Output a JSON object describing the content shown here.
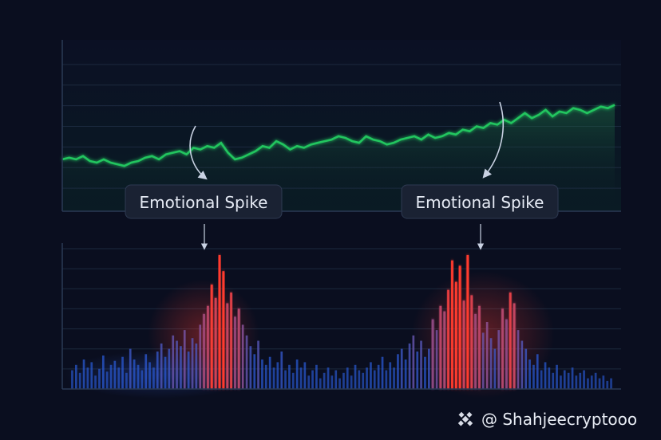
{
  "chart_data": [
    {
      "type": "line",
      "x": [
        0,
        1,
        2,
        3,
        4,
        5,
        6,
        7,
        8,
        9,
        10,
        11,
        12,
        13,
        14,
        15,
        16,
        17,
        18,
        19,
        20,
        21,
        22,
        23,
        24,
        25,
        26,
        27,
        28,
        29,
        30,
        31,
        32,
        33,
        34,
        35,
        36,
        37,
        38,
        39,
        40,
        41,
        42,
        43,
        44,
        45,
        46,
        47,
        48,
        49,
        50,
        51,
        52,
        53,
        54,
        55,
        56,
        57,
        58,
        59,
        60,
        61,
        62,
        63,
        64,
        65,
        66,
        67,
        68,
        69,
        70,
        71,
        72,
        73,
        74,
        75,
        76,
        77,
        78,
        79,
        80
      ],
      "values": [
        30,
        31,
        30,
        32,
        29,
        28,
        30,
        28,
        27,
        26,
        28,
        29,
        31,
        32,
        30,
        33,
        34,
        35,
        33,
        37,
        36,
        38,
        37,
        40,
        34,
        30,
        31,
        33,
        35,
        38,
        37,
        41,
        39,
        36,
        38,
        37,
        39,
        40,
        41,
        42,
        44,
        43,
        41,
        40,
        44,
        42,
        41,
        39,
        40,
        42,
        43,
        44,
        42,
        45,
        43,
        44,
        46,
        45,
        48,
        47,
        50,
        49,
        52,
        51,
        54,
        52,
        55,
        58,
        55,
        57,
        60,
        56,
        59,
        58,
        61,
        60,
        58,
        60,
        62,
        61,
        63
      ],
      "ylim": [
        0,
        100
      ],
      "color": "#22c55e"
    },
    {
      "type": "bar",
      "x": [
        0,
        1,
        2,
        3,
        4,
        5,
        6,
        7,
        8,
        9,
        10,
        11,
        12,
        13,
        14,
        15,
        16,
        17,
        18,
        19,
        20,
        21,
        22,
        23,
        24,
        25,
        26,
        27,
        28,
        29,
        30,
        31,
        32,
        33,
        34,
        35,
        36,
        37,
        38,
        39,
        40,
        41,
        42,
        43,
        44,
        45,
        46,
        47,
        48,
        49,
        50,
        51,
        52,
        53,
        54,
        55,
        56,
        57,
        58,
        59,
        60,
        61,
        62,
        63,
        64,
        65,
        66,
        67,
        68,
        69,
        70,
        71,
        72,
        73,
        74,
        75,
        76,
        77,
        78,
        79,
        80,
        81,
        82,
        83,
        84,
        85,
        86,
        87,
        88,
        89,
        90,
        91,
        92,
        93,
        94,
        95,
        96,
        97,
        98,
        99,
        100,
        101,
        102,
        103,
        104,
        105,
        106,
        107,
        108,
        109,
        110,
        111,
        112,
        113,
        114,
        115,
        116,
        117,
        118,
        119,
        120,
        121,
        122,
        123,
        124,
        125,
        126,
        127,
        128,
        129,
        130,
        131,
        132,
        133,
        134,
        135,
        136,
        137,
        138,
        139
      ],
      "values": [
        14,
        18,
        12,
        22,
        16,
        20,
        10,
        15,
        25,
        13,
        18,
        21,
        16,
        24,
        12,
        30,
        22,
        18,
        14,
        26,
        20,
        16,
        28,
        34,
        24,
        30,
        40,
        36,
        32,
        44,
        28,
        38,
        34,
        48,
        56,
        62,
        78,
        68,
        100,
        88,
        64,
        72,
        54,
        60,
        48,
        40,
        32,
        26,
        36,
        22,
        18,
        24,
        16,
        20,
        28,
        14,
        18,
        12,
        22,
        16,
        20,
        10,
        14,
        18,
        8,
        12,
        16,
        10,
        14,
        8,
        12,
        16,
        10,
        18,
        14,
        12,
        16,
        20,
        14,
        18,
        24,
        14,
        20,
        16,
        26,
        30,
        22,
        34,
        40,
        28,
        36,
        24,
        30,
        52,
        44,
        62,
        58,
        74,
        96,
        80,
        92,
        66,
        100,
        70,
        56,
        62,
        42,
        50,
        38,
        30,
        44,
        60,
        52,
        72,
        64,
        44,
        36,
        30,
        22,
        18,
        26,
        14,
        20,
        16,
        12,
        18,
        10,
        14,
        12,
        16,
        10,
        12,
        14,
        8,
        10,
        12,
        8,
        10,
        6,
        8
      ],
      "ylim": [
        0,
        100
      ],
      "annotations": [
        {
          "text": "Emotional Spike",
          "x": 38
        },
        {
          "text": "Emotional Spike",
          "x": 101
        }
      ]
    }
  ],
  "watermark": {
    "text": "@ Shahjeecryptooo",
    "icon": "binance-logo-icon"
  },
  "colors": {
    "background": "#0a0e1f",
    "line": "#22c55e",
    "bar_low": "#2a5bd7",
    "bar_high": "#ff3b2f",
    "grid": "#1c2a3f"
  }
}
